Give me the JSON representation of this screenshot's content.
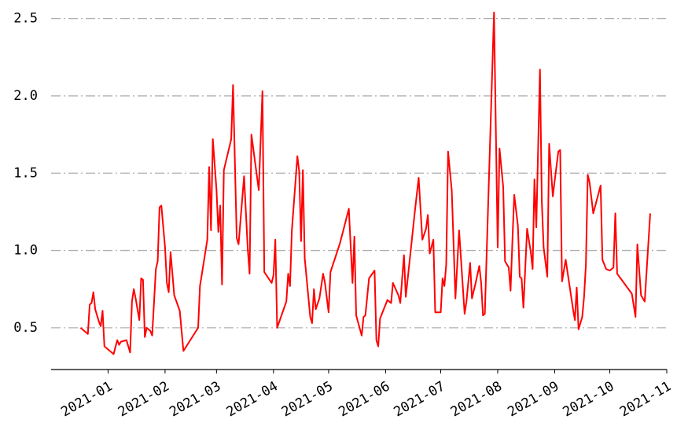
{
  "chart_data": {
    "type": "line",
    "color": "#ff0000",
    "grid": true,
    "x": [
      -15,
      -11,
      -10,
      -9,
      -8,
      -7,
      -5,
      -4,
      -3,
      -2,
      3,
      5,
      6,
      7,
      10,
      12,
      13,
      14,
      15,
      17,
      18,
      19,
      20,
      21,
      23,
      24,
      26,
      27,
      28,
      29,
      31,
      32,
      33,
      34,
      36,
      39,
      41,
      49,
      50,
      54,
      55,
      56,
      57,
      59,
      60,
      61,
      62,
      63,
      67,
      68,
      70,
      71,
      74,
      76,
      77,
      78,
      82,
      84,
      85,
      89,
      90,
      91,
      92,
      97,
      98,
      99,
      100,
      103,
      104,
      105,
      106,
      107,
      110,
      111,
      112,
      113,
      115,
      117,
      118,
      120,
      121,
      126,
      128,
      131,
      133,
      134,
      135,
      138,
      139,
      140,
      142,
      145,
      146,
      147,
      148,
      152,
      154,
      155,
      158,
      159,
      161,
      162,
      167,
      169,
      171,
      173,
      174,
      175,
      177,
      178,
      181,
      182,
      183,
      184,
      185,
      187,
      189,
      191,
      193,
      194,
      195,
      197,
      198,
      200,
      202,
      203,
      204,
      205,
      210,
      212,
      213,
      215,
      216,
      218,
      219,
      220,
      221,
      223,
      224,
      225,
      226,
      228,
      230,
      231,
      232,
      233,
      235,
      236,
      237,
      239,
      240,
      242,
      243,
      245,
      246,
      247,
      249,
      251,
      253,
      254,
      255,
      256,
      258,
      259,
      260,
      261,
      262,
      264,
      268,
      269,
      271,
      273,
      275,
      276,
      277,
      285,
      287,
      288,
      290,
      292,
      295
    ],
    "values": [
      0.5,
      0.46,
      0.65,
      0.66,
      0.73,
      0.62,
      0.54,
      0.51,
      0.61,
      0.38,
      0.33,
      0.42,
      0.39,
      0.41,
      0.42,
      0.34,
      0.67,
      0.75,
      0.69,
      0.55,
      0.82,
      0.81,
      0.44,
      0.5,
      0.48,
      0.45,
      0.88,
      0.93,
      1.28,
      1.29,
      1.02,
      0.79,
      0.73,
      0.99,
      0.71,
      0.61,
      0.35,
      0.5,
      0.77,
      1.07,
      1.54,
      1.13,
      1.72,
      1.39,
      1.12,
      1.29,
      0.78,
      1.52,
      1.72,
      2.07,
      1.08,
      1.04,
      1.48,
      1.01,
      0.85,
      1.75,
      1.39,
      2.03,
      0.86,
      0.79,
      0.84,
      1.07,
      0.5,
      0.67,
      0.85,
      0.77,
      1.13,
      1.61,
      1.51,
      1.06,
      1.52,
      0.95,
      0.57,
      0.53,
      0.75,
      0.62,
      0.69,
      0.85,
      0.79,
      0.6,
      0.86,
      1.04,
      1.13,
      1.27,
      0.79,
      1.09,
      0.58,
      0.45,
      0.57,
      0.58,
      0.82,
      0.87,
      0.42,
      0.38,
      0.56,
      0.68,
      0.66,
      0.79,
      0.71,
      0.66,
      0.97,
      0.7,
      1.26,
      1.47,
      1.07,
      1.14,
      1.23,
      0.98,
      1.07,
      0.6,
      0.6,
      0.82,
      0.77,
      0.91,
      1.64,
      1.39,
      0.69,
      1.13,
      0.77,
      0.59,
      0.67,
      0.92,
      0.69,
      0.79,
      0.9,
      0.79,
      0.58,
      0.59,
      2.54,
      1.02,
      1.66,
      1.41,
      0.93,
      0.89,
      0.74,
      1.06,
      1.36,
      1.16,
      0.83,
      0.82,
      0.63,
      1.14,
      0.99,
      0.88,
      1.46,
      1.15,
      2.17,
      1.32,
      1.02,
      0.83,
      1.69,
      1.35,
      1.45,
      1.64,
      1.65,
      0.8,
      0.94,
      0.78,
      0.62,
      0.55,
      0.76,
      0.49,
      0.57,
      0.7,
      0.91,
      1.49,
      1.44,
      1.24,
      1.42,
      0.94,
      0.88,
      0.87,
      0.89,
      1.24,
      0.85,
      0.72,
      0.57,
      1.04,
      0.71,
      0.67,
      1.24
    ],
    "xlim": [
      -31,
      304
    ],
    "xticks": [
      {
        "value": 0,
        "label": "2021-01"
      },
      {
        "value": 31,
        "label": "2021-02"
      },
      {
        "value": 59,
        "label": "2021-03"
      },
      {
        "value": 90,
        "label": "2021-04"
      },
      {
        "value": 120,
        "label": "2021-05"
      },
      {
        "value": 151,
        "label": "2021-06"
      },
      {
        "value": 181,
        "label": "2021-07"
      },
      {
        "value": 212,
        "label": "2021-08"
      },
      {
        "value": 243,
        "label": "2021-09"
      },
      {
        "value": 273,
        "label": "2021-10"
      },
      {
        "value": 304,
        "label": "2021-11"
      }
    ],
    "ylim": [
      0.23,
      2.62
    ],
    "yticks": [
      0.5,
      {
        "value": 1,
        "label": "1.0"
      },
      1.5,
      {
        "value": 2,
        "label": "2.0"
      },
      2.5
    ]
  }
}
